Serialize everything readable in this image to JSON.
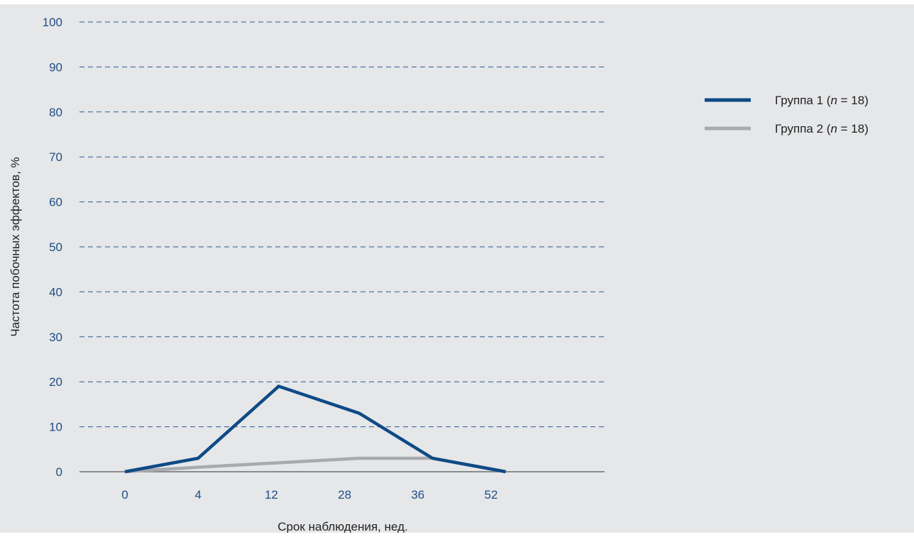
{
  "colors": {
    "panel_background": "#e6e7e9",
    "grid": "#2a5a8c",
    "axis_text": "#1f4e86",
    "baseline": "#8a8c8f",
    "label_text": "#222222"
  },
  "chart_data": {
    "type": "line",
    "categories": [
      "0",
      "4",
      "12",
      "28",
      "36",
      "52"
    ],
    "xlabel": "Срок наблюдения, нед.",
    "ylabel": "Частота побочных эффектов, %",
    "ylim": [
      0,
      100
    ],
    "yticks": [
      0,
      10,
      20,
      30,
      40,
      50,
      60,
      70,
      80,
      90,
      100
    ],
    "grid": true,
    "legend_position": "right",
    "series": [
      {
        "label": "Группа 1",
        "n_label": "n",
        "n_suffix": " = 18)",
        "color": "#0e4a86",
        "x": [
          0,
          1,
          2.1,
          3.2,
          4.2,
          5.2
        ],
        "values": [
          0,
          3,
          19,
          13,
          3,
          0
        ]
      },
      {
        "label": "Группа 2",
        "n_label": "n",
        "n_suffix": " = 18)",
        "color": "#a8aaad",
        "x": [
          0,
          1,
          2.1,
          3.2,
          4.2,
          5.2
        ],
        "values": [
          0,
          1,
          2,
          3,
          3,
          0
        ]
      }
    ]
  }
}
